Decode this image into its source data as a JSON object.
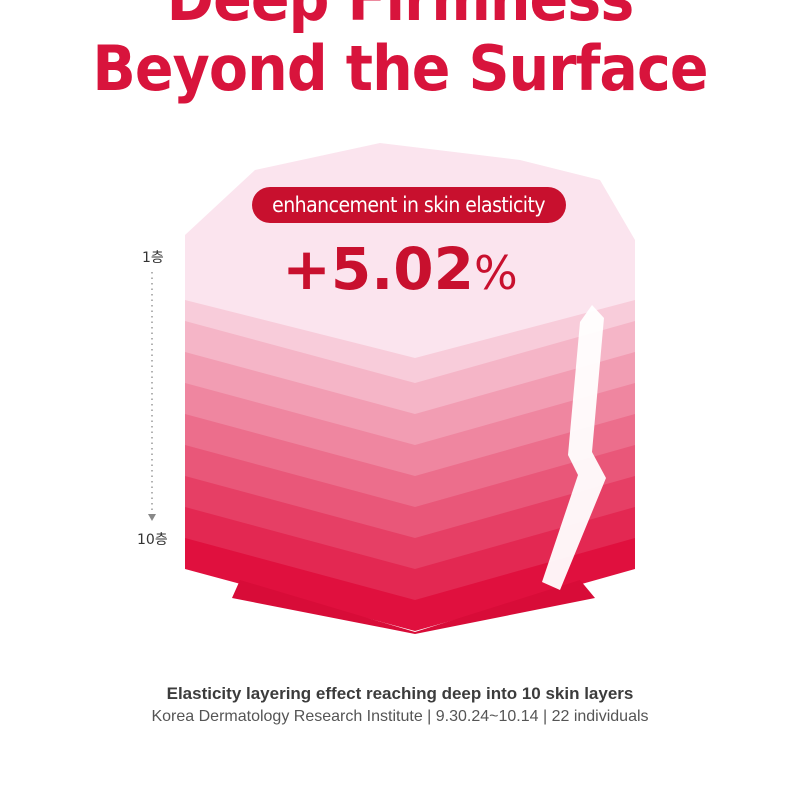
{
  "headline": {
    "line1": "Deep Firmness",
    "line2": "Beyond the Surface"
  },
  "badge": {
    "label": "enhancement in skin elasticity"
  },
  "stat": {
    "value": "+5.02",
    "unit": "%"
  },
  "layers": {
    "top_label": "1층",
    "bottom_label": "10층",
    "count": 10,
    "top_color": "#fbe4ee",
    "bottom_color": "#e0103e"
  },
  "caption": {
    "title": "Elasticity layering effect reaching deep into 10 skin layers",
    "source": "Korea Dermatology Research Institute | 9.30.24~10.14 | 22 individuals"
  },
  "colors": {
    "accent": "#c8102e",
    "headline": "#d8143c"
  }
}
